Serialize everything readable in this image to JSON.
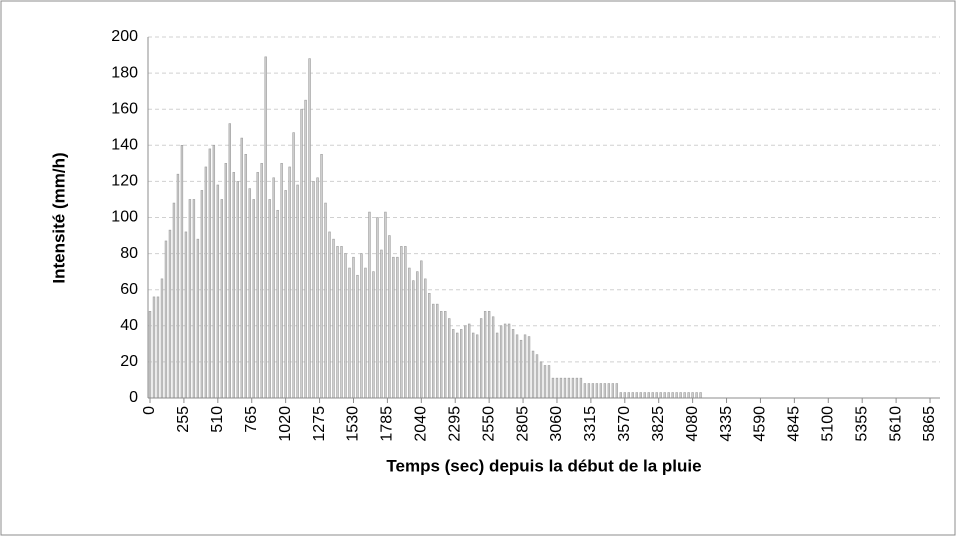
{
  "chart_data": {
    "type": "bar",
    "xlabel": "Temps (sec) depuis la début de la pluie",
    "ylabel": "Intensité (mm/h)",
    "x": [
      0,
      30,
      60,
      90,
      120,
      150,
      180,
      210,
      240,
      270,
      300,
      330,
      360,
      390,
      420,
      450,
      480,
      510,
      540,
      570,
      600,
      630,
      660,
      690,
      720,
      750,
      780,
      810,
      840,
      870,
      900,
      930,
      960,
      990,
      1020,
      1050,
      1080,
      1110,
      1140,
      1170,
      1200,
      1230,
      1260,
      1290,
      1320,
      1350,
      1380,
      1410,
      1440,
      1470,
      1500,
      1530,
      1560,
      1590,
      1620,
      1650,
      1680,
      1710,
      1740,
      1770,
      1800,
      1830,
      1860,
      1890,
      1920,
      1950,
      1980,
      2010,
      2040,
      2070,
      2100,
      2130,
      2160,
      2190,
      2220,
      2250,
      2280,
      2310,
      2340,
      2370,
      2400,
      2430,
      2460,
      2490,
      2520,
      2550,
      2580,
      2610,
      2640,
      2670,
      2700,
      2730,
      2760,
      2790,
      2820,
      2850,
      2880,
      2910,
      2940,
      2970,
      3000,
      3030,
      3060,
      3090,
      3120,
      3150,
      3180,
      3210,
      3240,
      3270,
      3300,
      3330,
      3360,
      3390,
      3420,
      3450,
      3480,
      3510,
      3540,
      3570,
      3600,
      3630,
      3660,
      3690,
      3720,
      3750,
      3780,
      3810,
      3840,
      3870,
      3900,
      3930,
      3960,
      3990,
      4020,
      4050,
      4080,
      4110,
      4140
    ],
    "values": [
      48,
      56,
      56,
      66,
      87,
      93,
      108,
      124,
      140,
      92,
      110,
      110,
      88,
      115,
      128,
      138,
      140,
      118,
      110,
      130,
      152,
      125,
      120,
      144,
      135,
      116,
      110,
      125,
      130,
      189,
      110,
      122,
      104,
      130,
      115,
      128,
      147,
      118,
      160,
      165,
      188,
      120,
      122,
      135,
      108,
      92,
      88,
      84,
      84,
      80,
      72,
      78,
      68,
      80,
      72,
      103,
      70,
      100,
      82,
      103,
      90,
      78,
      78,
      84,
      84,
      72,
      65,
      70,
      76,
      66,
      58,
      52,
      52,
      48,
      48,
      44,
      38,
      36,
      38,
      40,
      41,
      36,
      35,
      44,
      48,
      48,
      45,
      36,
      40,
      41,
      41,
      38,
      35,
      32,
      35,
      34,
      26,
      24,
      20,
      18,
      18,
      11,
      11,
      11,
      11,
      11,
      11,
      11,
      11,
      8,
      8,
      8,
      8,
      8,
      8,
      8,
      8,
      8,
      3,
      3,
      3,
      3,
      3,
      3,
      3,
      3,
      3,
      3,
      3,
      3,
      3,
      3,
      3,
      3,
      3,
      3,
      3,
      3,
      3
    ],
    "color": "#cfcfcf",
    "edgecolor": "#9c9c9c",
    "xlim": [
      -15,
      5940
    ],
    "xticks": [
      0,
      255,
      510,
      765,
      1020,
      1275,
      1530,
      1785,
      2040,
      2295,
      2550,
      2805,
      3060,
      3315,
      3570,
      3825,
      4080,
      4335,
      4590,
      4845,
      5100,
      5355,
      5610,
      5865
    ],
    "ylim": [
      0,
      200
    ],
    "yticks": [
      0,
      20,
      40,
      60,
      80,
      100,
      120,
      140,
      160,
      180,
      200
    ],
    "grid": true
  }
}
